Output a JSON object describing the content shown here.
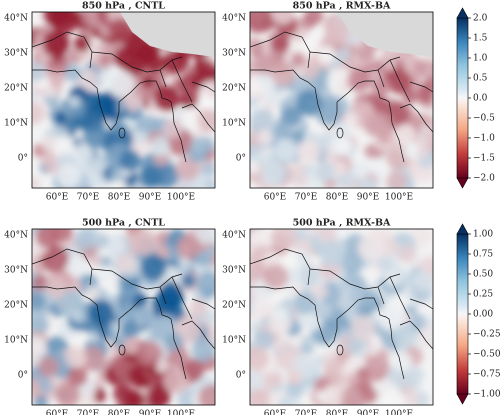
{
  "panels": [
    {
      "title": "850 hPa , CNTL"
    },
    {
      "title": "850 hPa , RMX-BA"
    },
    {
      "title": "500 hPa , CNTL"
    },
    {
      "title": "500 hPa , RMX-BA"
    }
  ],
  "lat_labels": [
    "40°N",
    "30°N",
    "20°N",
    "10°N",
    "0°"
  ],
  "lon_labels": [
    "60°E",
    "70°E",
    "80°E",
    "90°E",
    "100°E"
  ],
  "colorbars": [
    {
      "lim": [
        -2,
        2
      ],
      "ticks": [
        {
          "value": 2,
          "label": "2.0"
        },
        1.5,
        {
          "value": 1,
          "label": "1.0"
        },
        0.5,
        {
          "value": 0,
          "label": "0.0"
        },
        {
          "value": -0.5,
          "label": "−0.5"
        },
        {
          "value": -1,
          "label": "−1.0"
        },
        {
          "value": -1.5,
          "label": "−1.5"
        },
        {
          "value": -2,
          "label": "−2.0"
        }
      ]
    },
    {
      "lim": [
        -1,
        1
      ],
      "ticks": [
        {
          "value": 1,
          "label": "1.00"
        },
        0.75,
        {
          "value": 0.5,
          "label": "0.50"
        },
        0.25,
        {
          "value": 0,
          "label": "0.00"
        },
        {
          "value": -0.25,
          "label": "−0.25"
        },
        {
          "value": -0.5,
          "label": "−0.50"
        },
        {
          "value": -0.75,
          "label": "−0.75"
        },
        {
          "value": -1,
          "label": "−1.00"
        }
      ]
    }
  ]
}
